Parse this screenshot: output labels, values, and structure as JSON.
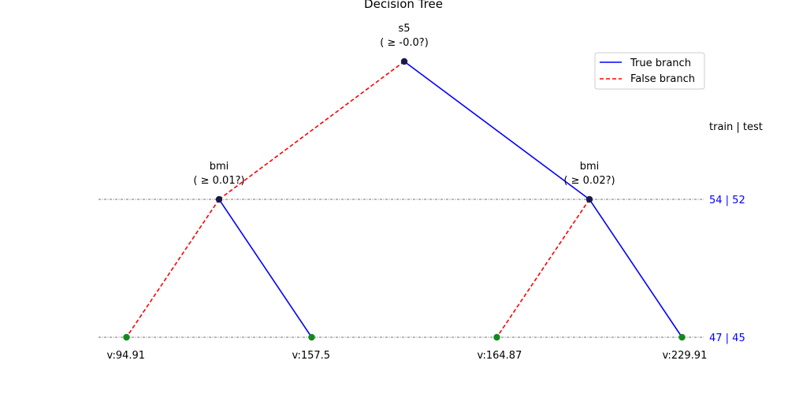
{
  "title": "Decision Tree",
  "legend": {
    "true_label": "True branch",
    "false_label": "False branch"
  },
  "colors": {
    "true_branch": "#0000ff",
    "false_branch": "#ff0000",
    "leaf_node": "#138a1b",
    "split_node": "#1a1a4a",
    "level_label": "#0000ff",
    "guide_line": "#444444"
  },
  "header": "train | test",
  "levels": [
    {
      "label": "54 | 52"
    },
    {
      "label": "47 | 45"
    }
  ],
  "nodes": [
    {
      "id": "root",
      "feature": "s5",
      "condition": "( ≥ -0.0?)",
      "depth": 0,
      "slot": 2
    },
    {
      "id": "left",
      "feature": "bmi",
      "condition": "( ≥ 0.01?)",
      "depth": 1,
      "slot": 1
    },
    {
      "id": "right",
      "feature": "bmi",
      "condition": "( ≥ 0.02?)",
      "depth": 1,
      "slot": 3
    },
    {
      "id": "leaf1",
      "value": "v:94.91",
      "depth": 2,
      "slot": 0.5
    },
    {
      "id": "leaf2",
      "value": "v:157.5",
      "depth": 2,
      "slot": 1.5
    },
    {
      "id": "leaf3",
      "value": "v:164.87",
      "depth": 2,
      "slot": 2.5
    },
    {
      "id": "leaf4",
      "value": "v:229.91",
      "depth": 2,
      "slot": 3.5
    }
  ],
  "edges": [
    {
      "from": "root",
      "to": "left",
      "kind": "false"
    },
    {
      "from": "root",
      "to": "right",
      "kind": "true"
    },
    {
      "from": "left",
      "to": "leaf1",
      "kind": "false"
    },
    {
      "from": "left",
      "to": "leaf2",
      "kind": "true"
    },
    {
      "from": "right",
      "to": "leaf3",
      "kind": "false"
    },
    {
      "from": "right",
      "to": "leaf4",
      "kind": "true"
    }
  ]
}
